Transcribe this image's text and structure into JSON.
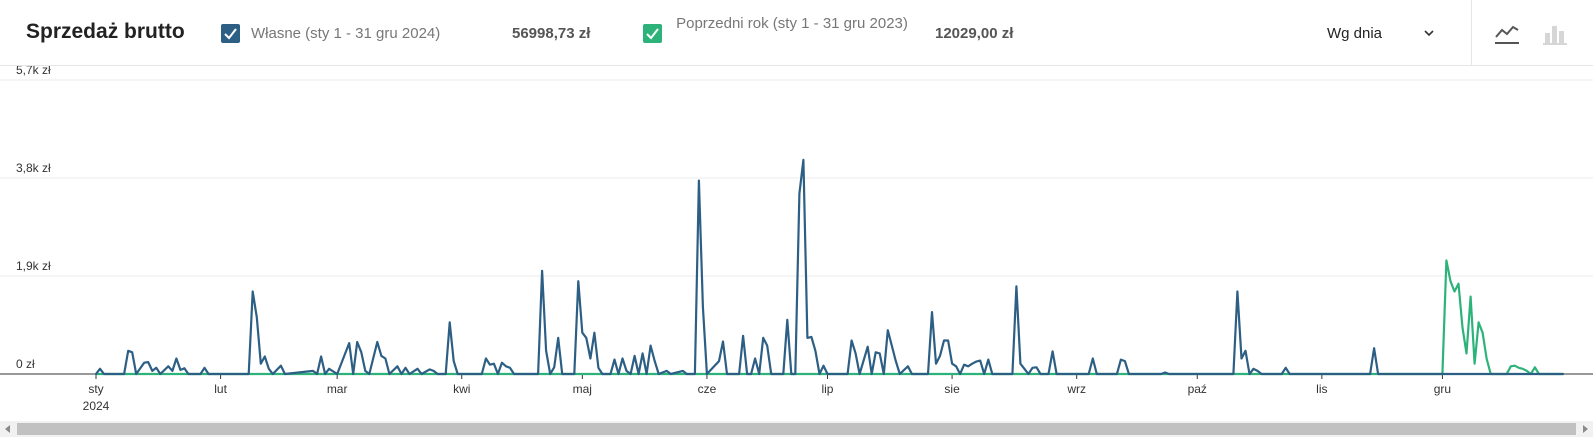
{
  "header": {
    "title": "Sprzedaż brutto",
    "own_label": "Własne (sty 1 - 31 gru 2024)",
    "own_total": "56998,73 zł",
    "prev_label": "Poprzedni rok (sty 1 - 31 gru 2023)",
    "prev_total": "12029,00 zł",
    "period_select": "Wg dnia",
    "icons": [
      "chevron-down-icon",
      "line-chart-icon",
      "bar-chart-icon"
    ]
  },
  "colors": {
    "own": "#2d5f85",
    "prev": "#2db37a",
    "grid": "#ebebeb",
    "axis": "#333333"
  },
  "chart_data": {
    "type": "line",
    "title": "Sprzedaż brutto",
    "xlabel": "",
    "ylabel": "",
    "x_domain": [
      "2024-01-01",
      "2024-12-31"
    ],
    "ylim": [
      0,
      5700
    ],
    "yticks": [
      0,
      1900,
      3800,
      5700
    ],
    "ytick_labels": [
      "0 zł",
      "1,9k zł",
      "3,8k zł",
      "5,7k zł"
    ],
    "xticks": [
      {
        "date": "2024-01-01",
        "label": "sty",
        "sublabel": "2024"
      },
      {
        "date": "2024-02-01",
        "label": "lut"
      },
      {
        "date": "2024-03-01",
        "label": "mar"
      },
      {
        "date": "2024-04-01",
        "label": "kwi"
      },
      {
        "date": "2024-05-01",
        "label": "maj"
      },
      {
        "date": "2024-06-01",
        "label": "cze"
      },
      {
        "date": "2024-07-01",
        "label": "lip"
      },
      {
        "date": "2024-08-01",
        "label": "sie"
      },
      {
        "date": "2024-09-01",
        "label": "wrz"
      },
      {
        "date": "2024-10-01",
        "label": "paź"
      },
      {
        "date": "2024-11-01",
        "label": "lis"
      },
      {
        "date": "2024-12-01",
        "label": "gru"
      }
    ],
    "grid": true,
    "legend": "top",
    "series": [
      {
        "name": "Własne (sty 1 - 31 gru 2024)",
        "values": [
          [
            "2024-01-01",
            0
          ],
          [
            "2024-01-02",
            100
          ],
          [
            "2024-01-03",
            0
          ],
          [
            "2024-01-08",
            0
          ],
          [
            "2024-01-09",
            450
          ],
          [
            "2024-01-10",
            420
          ],
          [
            "2024-01-11",
            0
          ],
          [
            "2024-01-13",
            220
          ],
          [
            "2024-01-14",
            230
          ],
          [
            "2024-01-15",
            60
          ],
          [
            "2024-01-16",
            120
          ],
          [
            "2024-01-17",
            0
          ],
          [
            "2024-01-19",
            150
          ],
          [
            "2024-01-20",
            60
          ],
          [
            "2024-01-21",
            300
          ],
          [
            "2024-01-22",
            80
          ],
          [
            "2024-01-23",
            110
          ],
          [
            "2024-01-24",
            0
          ],
          [
            "2024-01-27",
            0
          ],
          [
            "2024-01-28",
            120
          ],
          [
            "2024-01-29",
            0
          ],
          [
            "2024-02-08",
            0
          ],
          [
            "2024-02-09",
            1600
          ],
          [
            "2024-02-10",
            1100
          ],
          [
            "2024-02-11",
            200
          ],
          [
            "2024-02-12",
            340
          ],
          [
            "2024-02-13",
            100
          ],
          [
            "2024-02-14",
            0
          ],
          [
            "2024-02-16",
            160
          ],
          [
            "2024-02-17",
            0
          ],
          [
            "2024-02-24",
            60
          ],
          [
            "2024-02-25",
            0
          ],
          [
            "2024-02-26",
            340
          ],
          [
            "2024-02-27",
            0
          ],
          [
            "2024-02-28",
            100
          ],
          [
            "2024-03-01",
            0
          ],
          [
            "2024-03-04",
            600
          ],
          [
            "2024-03-05",
            0
          ],
          [
            "2024-03-06",
            620
          ],
          [
            "2024-03-07",
            420
          ],
          [
            "2024-03-08",
            60
          ],
          [
            "2024-03-09",
            0
          ],
          [
            "2024-03-11",
            620
          ],
          [
            "2024-03-12",
            350
          ],
          [
            "2024-03-13",
            300
          ],
          [
            "2024-03-14",
            0
          ],
          [
            "2024-03-16",
            150
          ],
          [
            "2024-03-17",
            0
          ],
          [
            "2024-03-18",
            120
          ],
          [
            "2024-03-19",
            0
          ],
          [
            "2024-03-21",
            100
          ],
          [
            "2024-03-22",
            0
          ],
          [
            "2024-03-24",
            90
          ],
          [
            "2024-03-25",
            60
          ],
          [
            "2024-03-26",
            0
          ],
          [
            "2024-03-28",
            0
          ],
          [
            "2024-03-29",
            1000
          ],
          [
            "2024-03-30",
            250
          ],
          [
            "2024-03-31",
            0
          ],
          [
            "2024-04-06",
            0
          ],
          [
            "2024-04-07",
            300
          ],
          [
            "2024-04-08",
            180
          ],
          [
            "2024-04-09",
            200
          ],
          [
            "2024-04-10",
            0
          ],
          [
            "2024-04-11",
            220
          ],
          [
            "2024-04-12",
            150
          ],
          [
            "2024-04-13",
            120
          ],
          [
            "2024-04-14",
            0
          ],
          [
            "2024-04-20",
            0
          ],
          [
            "2024-04-21",
            2000
          ],
          [
            "2024-04-22",
            450
          ],
          [
            "2024-04-23",
            0
          ],
          [
            "2024-04-24",
            130
          ],
          [
            "2024-04-25",
            700
          ],
          [
            "2024-04-26",
            0
          ],
          [
            "2024-04-29",
            0
          ],
          [
            "2024-04-30",
            1800
          ],
          [
            "2024-05-01",
            800
          ],
          [
            "2024-05-02",
            700
          ],
          [
            "2024-05-03",
            300
          ],
          [
            "2024-05-04",
            800
          ],
          [
            "2024-05-05",
            120
          ],
          [
            "2024-05-06",
            0
          ],
          [
            "2024-05-08",
            0
          ],
          [
            "2024-05-09",
            280
          ],
          [
            "2024-05-10",
            0
          ],
          [
            "2024-05-11",
            300
          ],
          [
            "2024-05-12",
            60
          ],
          [
            "2024-05-13",
            0
          ],
          [
            "2024-05-14",
            350
          ],
          [
            "2024-05-15",
            0
          ],
          [
            "2024-05-16",
            400
          ],
          [
            "2024-05-17",
            0
          ],
          [
            "2024-05-18",
            550
          ],
          [
            "2024-05-19",
            250
          ],
          [
            "2024-05-20",
            0
          ],
          [
            "2024-05-22",
            60
          ],
          [
            "2024-05-23",
            0
          ],
          [
            "2024-05-26",
            60
          ],
          [
            "2024-05-27",
            0
          ],
          [
            "2024-05-29",
            0
          ],
          [
            "2024-05-30",
            3750
          ],
          [
            "2024-05-31",
            1300
          ],
          [
            "2024-06-01",
            0
          ],
          [
            "2024-06-04",
            250
          ],
          [
            "2024-06-05",
            630
          ],
          [
            "2024-06-06",
            0
          ],
          [
            "2024-06-09",
            0
          ],
          [
            "2024-06-10",
            740
          ],
          [
            "2024-06-11",
            0
          ],
          [
            "2024-06-12",
            0
          ],
          [
            "2024-06-13",
            300
          ],
          [
            "2024-06-14",
            0
          ],
          [
            "2024-06-15",
            700
          ],
          [
            "2024-06-16",
            550
          ],
          [
            "2024-06-17",
            0
          ],
          [
            "2024-06-20",
            0
          ],
          [
            "2024-06-21",
            1050
          ],
          [
            "2024-06-22",
            0
          ],
          [
            "2024-06-23",
            0
          ],
          [
            "2024-06-24",
            3500
          ],
          [
            "2024-06-25",
            4150
          ],
          [
            "2024-06-26",
            700
          ],
          [
            "2024-06-27",
            720
          ],
          [
            "2024-06-28",
            450
          ],
          [
            "2024-06-29",
            0
          ],
          [
            "2024-06-30",
            160
          ],
          [
            "2024-07-01",
            0
          ],
          [
            "2024-07-06",
            0
          ],
          [
            "2024-07-07",
            650
          ],
          [
            "2024-07-08",
            400
          ],
          [
            "2024-07-09",
            0
          ],
          [
            "2024-07-11",
            530
          ],
          [
            "2024-07-12",
            0
          ],
          [
            "2024-07-13",
            420
          ],
          [
            "2024-07-14",
            400
          ],
          [
            "2024-07-15",
            0
          ],
          [
            "2024-07-16",
            850
          ],
          [
            "2024-07-17",
            550
          ],
          [
            "2024-07-18",
            250
          ],
          [
            "2024-07-19",
            0
          ],
          [
            "2024-07-21",
            150
          ],
          [
            "2024-07-22",
            0
          ],
          [
            "2024-07-26",
            0
          ],
          [
            "2024-07-27",
            1200
          ],
          [
            "2024-07-28",
            200
          ],
          [
            "2024-07-29",
            350
          ],
          [
            "2024-07-30",
            650
          ],
          [
            "2024-07-31",
            650
          ],
          [
            "2024-08-01",
            200
          ],
          [
            "2024-08-02",
            150
          ],
          [
            "2024-08-03",
            0
          ],
          [
            "2024-08-04",
            180
          ],
          [
            "2024-08-05",
            150
          ],
          [
            "2024-08-06",
            200
          ],
          [
            "2024-08-07",
            240
          ],
          [
            "2024-08-08",
            260
          ],
          [
            "2024-08-09",
            0
          ],
          [
            "2024-08-10",
            280
          ],
          [
            "2024-08-11",
            0
          ],
          [
            "2024-08-16",
            0
          ],
          [
            "2024-08-17",
            1700
          ],
          [
            "2024-08-18",
            200
          ],
          [
            "2024-08-19",
            100
          ],
          [
            "2024-08-20",
            0
          ],
          [
            "2024-08-21",
            120
          ],
          [
            "2024-08-22",
            130
          ],
          [
            "2024-08-23",
            0
          ],
          [
            "2024-08-25",
            0
          ],
          [
            "2024-08-26",
            440
          ],
          [
            "2024-08-27",
            0
          ],
          [
            "2024-09-04",
            0
          ],
          [
            "2024-09-05",
            300
          ],
          [
            "2024-09-06",
            0
          ],
          [
            "2024-09-11",
            0
          ],
          [
            "2024-09-12",
            280
          ],
          [
            "2024-09-13",
            250
          ],
          [
            "2024-09-14",
            0
          ],
          [
            "2024-09-22",
            0
          ],
          [
            "2024-09-23",
            30
          ],
          [
            "2024-09-24",
            0
          ],
          [
            "2024-10-10",
            0
          ],
          [
            "2024-10-11",
            1600
          ],
          [
            "2024-10-12",
            300
          ],
          [
            "2024-10-13",
            450
          ],
          [
            "2024-10-14",
            0
          ],
          [
            "2024-10-15",
            100
          ],
          [
            "2024-10-16",
            60
          ],
          [
            "2024-10-17",
            0
          ],
          [
            "2024-10-22",
            0
          ],
          [
            "2024-10-23",
            120
          ],
          [
            "2024-10-24",
            0
          ],
          [
            "2024-11-13",
            0
          ],
          [
            "2024-11-14",
            500
          ],
          [
            "2024-11-15",
            0
          ],
          [
            "2024-12-31",
            0
          ]
        ]
      },
      {
        "name": "Poprzedni rok (sty 1 - 31 gru 2023)",
        "values": [
          [
            "2024-01-01",
            0
          ],
          [
            "2024-12-01",
            0
          ],
          [
            "2024-12-02",
            2200
          ],
          [
            "2024-12-03",
            1800
          ],
          [
            "2024-12-04",
            1600
          ],
          [
            "2024-12-05",
            1750
          ],
          [
            "2024-12-06",
            900
          ],
          [
            "2024-12-07",
            400
          ],
          [
            "2024-12-08",
            1500
          ],
          [
            "2024-12-09",
            200
          ],
          [
            "2024-12-10",
            1000
          ],
          [
            "2024-12-11",
            800
          ],
          [
            "2024-12-12",
            300
          ],
          [
            "2024-12-13",
            0
          ],
          [
            "2024-12-17",
            0
          ],
          [
            "2024-12-18",
            150
          ],
          [
            "2024-12-19",
            160
          ],
          [
            "2024-12-20",
            120
          ],
          [
            "2024-12-21",
            100
          ],
          [
            "2024-12-22",
            60
          ],
          [
            "2024-12-23",
            0
          ],
          [
            "2024-12-24",
            130
          ],
          [
            "2024-12-25",
            0
          ],
          [
            "2024-12-31",
            0
          ]
        ]
      }
    ]
  }
}
